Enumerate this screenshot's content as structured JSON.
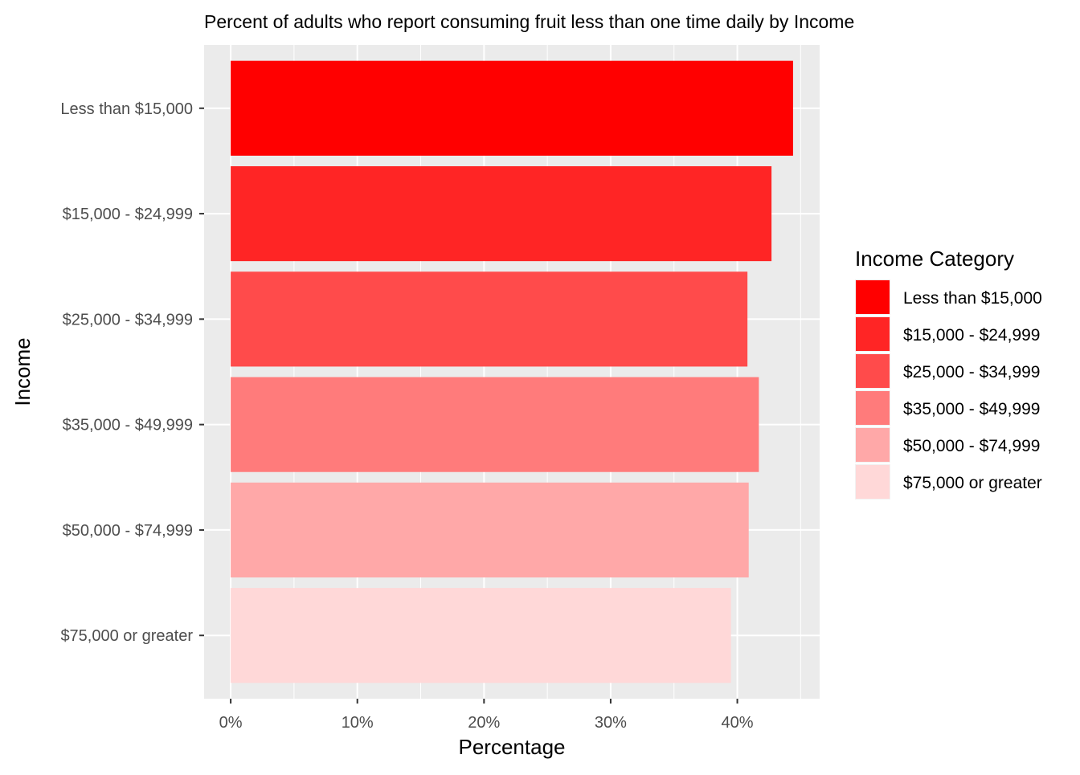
{
  "chart_data": {
    "type": "bar",
    "orientation": "horizontal",
    "title": "Percent of adults who report consuming fruit less than one time daily by Income",
    "xlabel": "Percentage",
    "ylabel": "Income",
    "categories": [
      "Less than $15,000",
      "$15,000 - $24,999",
      "$25,000 - $34,999",
      "$35,000 - $49,999",
      "$50,000 - $74,999",
      "$75,000 or greater"
    ],
    "values": [
      44.4,
      42.7,
      40.8,
      41.7,
      40.9,
      39.5
    ],
    "colors": [
      "#ff0000",
      "#ff2525",
      "#ff4b4b",
      "#ff7b7b",
      "#ffa8a8",
      "#ffd8d8"
    ],
    "xlim": [
      -2.1,
      46.5
    ],
    "x_ticks": [
      0,
      10,
      20,
      30,
      40
    ],
    "x_tick_labels": [
      "0%",
      "10%",
      "20%",
      "30%",
      "40%"
    ],
    "grid": true,
    "panel_background": "#ebebeb",
    "legend": {
      "title": "Income Category",
      "position": "right",
      "entries": [
        "Less than $15,000",
        "$15,000 - $24,999",
        "$25,000 - $34,999",
        "$35,000 - $49,999",
        "$50,000 - $74,999",
        "$75,000 or greater"
      ]
    }
  }
}
